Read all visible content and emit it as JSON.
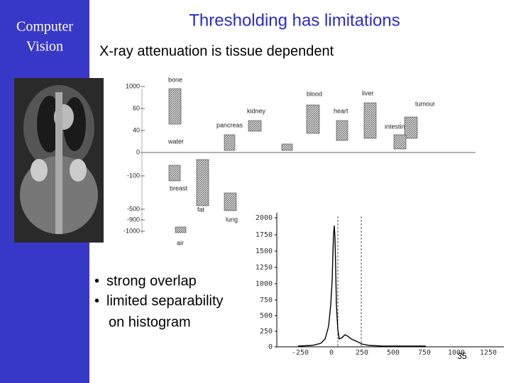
{
  "sidebar": {
    "lines": [
      "Computer",
      "Vision"
    ]
  },
  "title": "Thresholding has limitations",
  "subtitle": "X-ray attenuation is tissue dependent",
  "tissue_chart": {
    "labels": [
      "bone",
      "blood",
      "liver",
      "kidney",
      "heart",
      "tumour",
      "pancreas",
      "intestine",
      "water",
      "breast",
      "fat",
      "lung",
      "air"
    ],
    "ticks": [
      "1000",
      "60",
      "40",
      "0",
      "-100",
      "-500",
      "-900",
      "-1000"
    ]
  },
  "histogram": {
    "xticks": [
      "-250",
      "0",
      "250",
      "500",
      "750",
      "1000",
      "1250"
    ],
    "yticks": [
      "2000",
      "1750",
      "1500",
      "1250",
      "1000",
      "750",
      "500",
      "250",
      "0"
    ]
  },
  "bullets": [
    "strong overlap",
    "limited separability",
    "on histogram"
  ],
  "page_number": "35"
}
